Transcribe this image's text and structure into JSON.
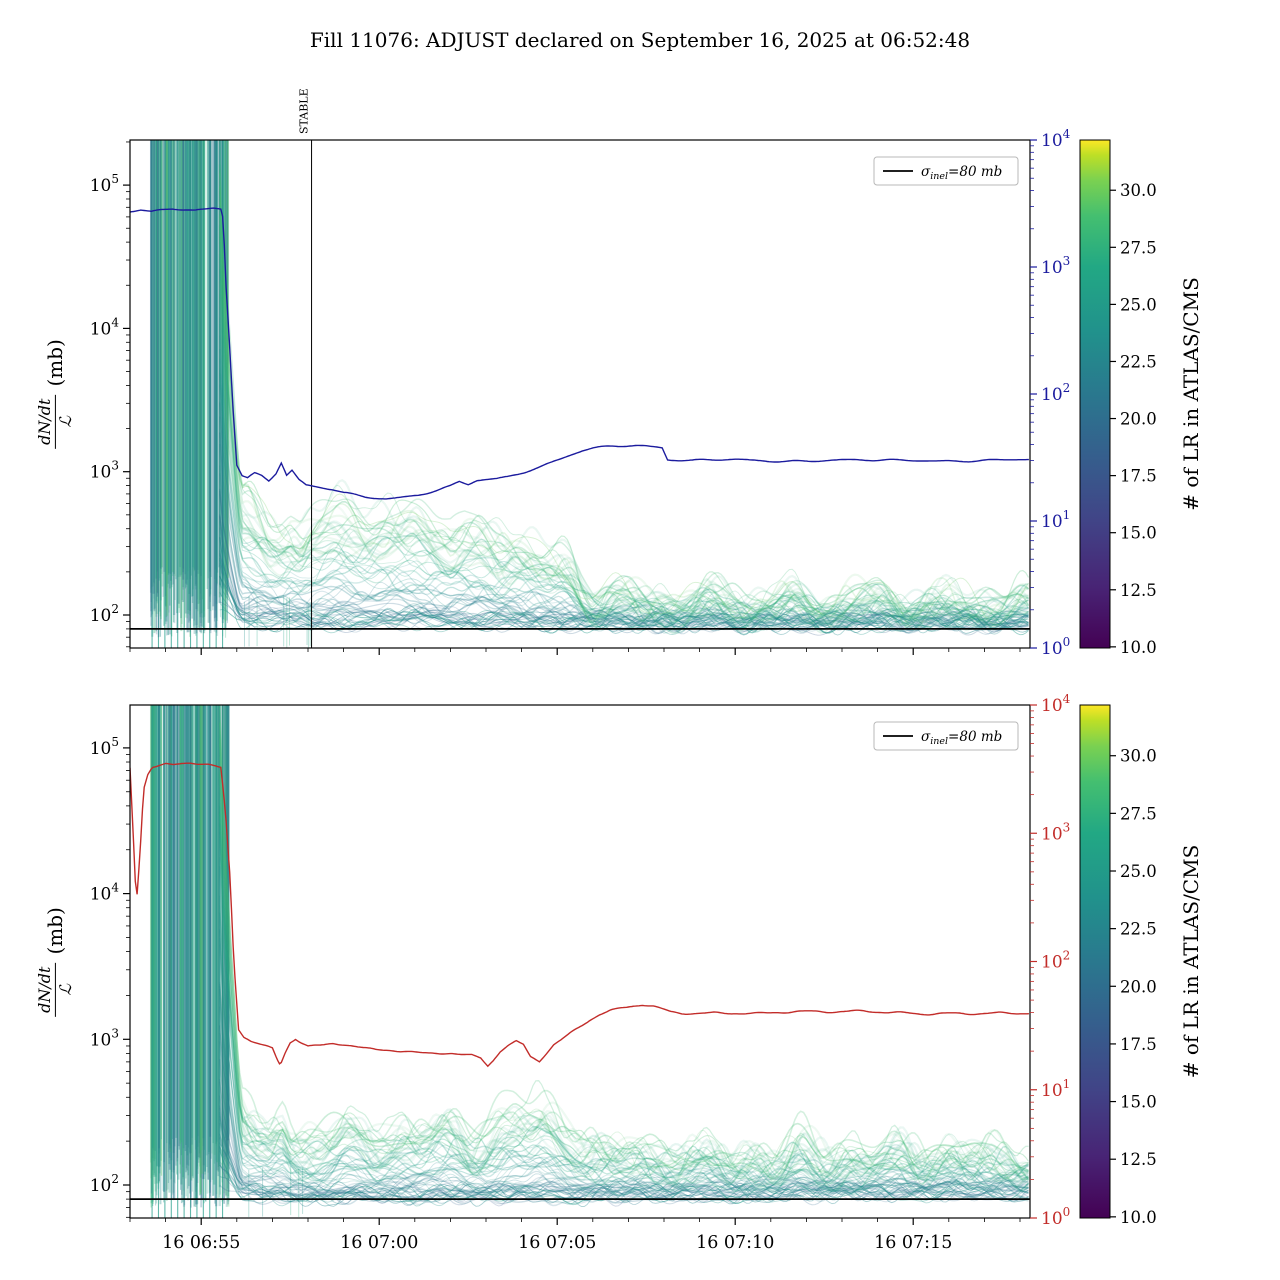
{
  "title": "Fill 11076: ADJUST declared on September 16, 2025 at 06:52:48",
  "y_axis_label": {
    "numerator": "dN/dt",
    "denominator": "ℒ",
    "unit": "(mb)"
  },
  "legend": {
    "symbol": "σ",
    "subscript": "inel",
    "suffix": "=80 mb"
  },
  "stable_label": "STABLE",
  "x_axis": {
    "tick_labels": [
      "16 06:55",
      "16 07:00",
      "16 07:05",
      "16 07:10",
      "16 07:15"
    ],
    "tick_t_minutes": [
      2,
      7,
      12,
      17,
      22
    ],
    "minor_step_minutes": 1,
    "t_range_minutes": [
      0,
      25.28
    ]
  },
  "colorbar": {
    "label": "# of LR in ATLAS/CMS",
    "ticks": [
      10.0,
      12.5,
      15.0,
      17.5,
      20.0,
      22.5,
      25.0,
      27.5,
      30.0
    ],
    "vmin": 9.95,
    "vmax": 32.2,
    "viridis_stops": [
      [
        "0",
        "#440154"
      ],
      [
        "0.12",
        "#482475"
      ],
      [
        "0.25",
        "#414487"
      ],
      [
        "0.38",
        "#355f8d"
      ],
      [
        "0.5",
        "#2a788e"
      ],
      [
        "0.62",
        "#21918c"
      ],
      [
        "0.75",
        "#22a884"
      ],
      [
        "0.85",
        "#44bf70"
      ],
      [
        "0.92",
        "#7ad151"
      ],
      [
        "0.97",
        "#bddf26"
      ],
      [
        "1",
        "#fde725"
      ]
    ]
  },
  "colors": {
    "line_top": "#1b1b9e",
    "line_bottom": "#c22c29",
    "sigma": "#000000",
    "axis": "#000000"
  },
  "chart_data": [
    {
      "panel": "top",
      "type": "line",
      "left_axis": {
        "scale": "log",
        "unit": "mb",
        "tick_exponents": [
          2,
          3,
          4,
          5
        ],
        "log10_range": [
          1.77,
          5.31
        ]
      },
      "right_axis": {
        "scale": "log",
        "tick_exponents": [
          0,
          1,
          2,
          3,
          4
        ],
        "log10_range": [
          0,
          4
        ],
        "color": "#1b1b9e"
      },
      "sigma_inel_mb": 80,
      "stable_marker_t": 5.1,
      "saturated_region_t": [
        0.58,
        2.78
      ],
      "rate_line": {
        "color_key": "line_top",
        "t": [
          0,
          0.3,
          0.6,
          0.9,
          1.2,
          1.5,
          1.8,
          2.1,
          2.35,
          2.55,
          2.62,
          2.7,
          2.78,
          2.88,
          3.0,
          3.15,
          3.3,
          3.5,
          3.7,
          3.9,
          4.1,
          4.25,
          4.4,
          4.55,
          4.75,
          4.95,
          5.15,
          5.4,
          5.7,
          6.0,
          6.3,
          6.6,
          6.9,
          7.2,
          7.5,
          7.8,
          8.1,
          8.4,
          8.7,
          9.0,
          9.25,
          9.5,
          9.75,
          10.0,
          10.3,
          10.6,
          10.9,
          11.2,
          11.5,
          11.8,
          12.1,
          12.4,
          12.7,
          13.0,
          13.3,
          13.6,
          13.9,
          14.2,
          14.5,
          14.8,
          14.95,
          15.1,
          15.4,
          15.8,
          16.4,
          17.0,
          18.0,
          19.0,
          20.0,
          21.0,
          22.0,
          23.0,
          24.0,
          25.3
        ],
        "v": [
          2750,
          2820,
          2700,
          2780,
          2850,
          2800,
          2760,
          2830,
          2900,
          2870,
          2400,
          700,
          300,
          90,
          28,
          23,
          22,
          24,
          23,
          21,
          24,
          29,
          23,
          25,
          21,
          19,
          18.5,
          18,
          17.5,
          16.5,
          16,
          15.5,
          15.3,
          15.2,
          15.5,
          15.8,
          16.2,
          16.8,
          17.5,
          18.5,
          20,
          19,
          20.5,
          21,
          21.5,
          22.5,
          24,
          25.5,
          27,
          29,
          31,
          33,
          35,
          36.5,
          37.5,
          38.5,
          39,
          39.5,
          39.5,
          39,
          38.5,
          31,
          30.5,
          30,
          30,
          30,
          29.7,
          30,
          30.2,
          29.8,
          30,
          30,
          30,
          30
        ]
      },
      "band": {
        "description": "per-luminosity-region dN/dt / L traces, colored by # of LR in ATLAS/CMS",
        "n_traces": 48,
        "lr_count_range": [
          10,
          32
        ],
        "t": [
          2.6,
          3.0,
          3.3,
          3.6,
          3.9,
          4.2,
          4.5,
          4.8,
          5.1,
          5.5,
          6.0,
          6.5,
          7.0,
          7.5,
          8.0,
          8.5,
          9.0,
          9.4,
          9.8,
          10.2,
          10.6,
          11.0,
          11.4,
          11.8,
          12.1,
          12.4,
          12.7,
          13.0,
          13.5,
          14.5,
          16.0,
          18.0,
          20.0,
          22.0,
          24.0,
          25.3
        ],
        "lower_mb": [
          120,
          95,
          92,
          91,
          90,
          90,
          90,
          90,
          90,
          90,
          90,
          90,
          90,
          90,
          90,
          90,
          90,
          90,
          90,
          90,
          90,
          89,
          89,
          88,
          88,
          88,
          88,
          88,
          88,
          88,
          88,
          88,
          88,
          88,
          88,
          88
        ],
        "upper_mb": [
          2500,
          900,
          700,
          520,
          450,
          470,
          520,
          440,
          520,
          560,
          580,
          590,
          600,
          590,
          570,
          500,
          430,
          470,
          450,
          400,
          360,
          330,
          310,
          280,
          260,
          220,
          170,
          150,
          140,
          135,
          132,
          130,
          130,
          128,
          128,
          128
        ]
      }
    },
    {
      "panel": "bottom",
      "type": "line",
      "left_axis": {
        "scale": "log",
        "unit": "mb",
        "tick_exponents": [
          2,
          3,
          4,
          5
        ],
        "log10_range": [
          1.77,
          5.29
        ]
      },
      "right_axis": {
        "scale": "log",
        "tick_exponents": [
          0,
          1,
          2,
          3,
          4
        ],
        "log10_range": [
          0,
          4
        ],
        "color": "#c22c29"
      },
      "sigma_inel_mb": 80,
      "saturated_region_t": [
        0.58,
        2.78
      ],
      "rate_line": {
        "color_key": "line_bottom",
        "t": [
          0,
          0.08,
          0.18,
          0.28,
          0.38,
          0.5,
          0.62,
          0.8,
          1.0,
          1.2,
          1.45,
          1.7,
          1.95,
          2.2,
          2.4,
          2.55,
          2.68,
          2.8,
          2.92,
          3.05,
          3.2,
          3.4,
          3.6,
          3.8,
          4.0,
          4.12,
          4.22,
          4.35,
          4.5,
          4.65,
          4.8,
          5.0,
          5.2,
          5.45,
          5.7,
          6.0,
          6.3,
          6.6,
          6.9,
          7.2,
          7.5,
          7.8,
          8.1,
          8.4,
          8.7,
          9.0,
          9.3,
          9.6,
          9.85,
          10.05,
          10.2,
          10.4,
          10.6,
          10.85,
          11.05,
          11.25,
          11.5,
          11.7,
          11.9,
          12.1,
          12.35,
          12.6,
          12.9,
          13.2,
          13.5,
          13.8,
          14.1,
          14.4,
          14.7,
          14.95,
          15.2,
          15.5,
          15.9,
          16.4,
          17.0,
          17.6,
          18.2,
          19.0,
          19.8,
          20.6,
          21.4,
          22.2,
          23.0,
          23.8,
          24.6,
          25.3
        ],
        "v": [
          3200,
          1100,
          280,
          700,
          2200,
          2900,
          3300,
          3400,
          3500,
          3450,
          3550,
          3600,
          3550,
          3500,
          3400,
          3300,
          1500,
          500,
          100,
          30,
          26,
          24,
          23,
          22,
          21,
          17.5,
          15.5,
          19,
          23,
          24.5,
          23,
          21.5,
          21.8,
          22,
          22.5,
          22,
          21.5,
          21,
          20.5,
          20.3,
          20,
          20,
          19.8,
          19.6,
          19.5,
          19.5,
          19.2,
          19,
          18,
          15.5,
          17,
          20,
          22,
          24,
          22.5,
          18,
          16.5,
          19,
          22,
          24,
          27,
          30,
          34,
          38,
          41,
          43,
          44.5,
          46,
          45,
          43,
          41,
          40,
          40,
          40.5,
          40,
          39.5,
          40,
          40.2,
          39.8,
          40.5,
          40,
          39.5,
          40,
          40,
          39.8,
          39.5
        ]
      },
      "band": {
        "description": "per-luminosity-region dN/dt / L traces, colored by # of LR in ATLAS/CMS",
        "n_traces": 48,
        "lr_count_range": [
          10,
          32
        ],
        "t": [
          2.6,
          3.0,
          3.3,
          3.6,
          3.9,
          4.1,
          4.3,
          4.5,
          4.8,
          5.2,
          5.6,
          6.0,
          6.5,
          7.0,
          7.5,
          8.0,
          8.5,
          9.0,
          9.5,
          10.0,
          10.4,
          10.8,
          11.2,
          11.6,
          12.0,
          12.4,
          12.8,
          13.2,
          13.8,
          14.5,
          16.0,
          18.0,
          20.0,
          22.0,
          24.0,
          25.3
        ],
        "lower_mb": [
          110,
          90,
          87,
          86,
          85,
          85,
          85,
          85,
          85,
          85,
          85,
          85,
          85,
          85,
          85,
          85,
          85,
          85,
          85,
          85,
          85,
          85,
          85,
          85,
          85,
          85,
          85,
          86,
          86,
          87,
          88,
          88,
          89,
          90,
          90,
          90
        ],
        "upper_mb": [
          1500,
          400,
          280,
          230,
          250,
          320,
          350,
          260,
          230,
          240,
          250,
          260,
          255,
          250,
          255,
          260,
          265,
          270,
          260,
          270,
          300,
          330,
          300,
          330,
          300,
          270,
          220,
          195,
          180,
          175,
          170,
          170,
          172,
          173,
          175,
          175
        ]
      }
    }
  ]
}
